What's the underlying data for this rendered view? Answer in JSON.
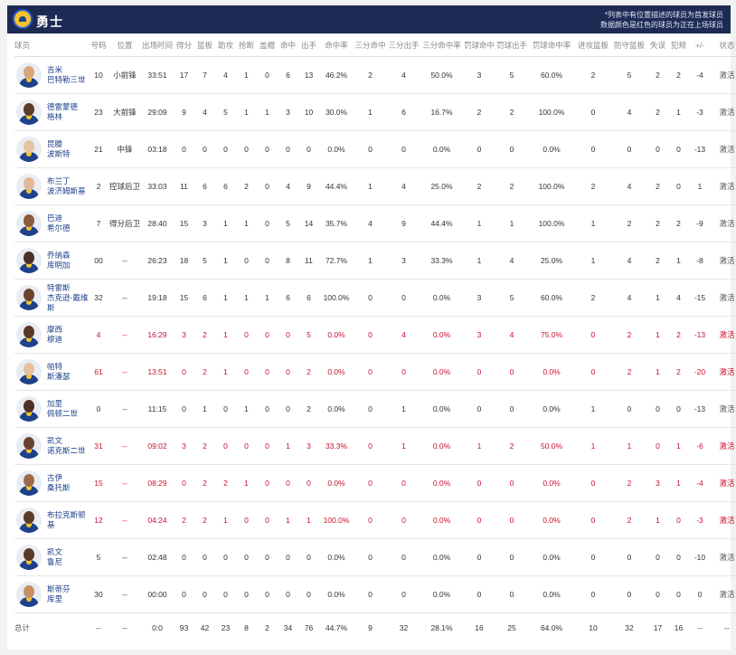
{
  "team": {
    "name": "勇士"
  },
  "note": {
    "line1": "*列表中有位置描述的球员为首发球员",
    "line2": "数据颜色是红色的球员为正在上场球员"
  },
  "headers": [
    "球员",
    "号码",
    "位置",
    "出场时间",
    "得分",
    "篮板",
    "助攻",
    "抢断",
    "盖帽",
    "命中",
    "出手",
    "命中率",
    "三分命中",
    "三分出手",
    "三分命中率",
    "罚球命中",
    "罚球出手",
    "罚球命中率",
    "进攻篮板",
    "防守篮板",
    "失误",
    "犯规",
    "+/-",
    "状态"
  ],
  "players": [
    {
      "name_l1": "吉米",
      "name_l2": "巴特勒三世",
      "on_court": false,
      "skin": "#d9a57a",
      "stats": [
        "10",
        "小前锋",
        "33:51",
        "17",
        "7",
        "4",
        "1",
        "0",
        "6",
        "13",
        "46.2%",
        "2",
        "4",
        "50.0%",
        "3",
        "5",
        "60.0%",
        "2",
        "5",
        "2",
        "2",
        "-4",
        "激活"
      ]
    },
    {
      "name_l1": "德雷蒙德",
      "name_l2": "格林",
      "on_court": false,
      "skin": "#5b3a29",
      "stats": [
        "23",
        "大前锋",
        "29:09",
        "9",
        "4",
        "5",
        "1",
        "1",
        "3",
        "10",
        "30.0%",
        "1",
        "6",
        "16.7%",
        "2",
        "2",
        "100.0%",
        "0",
        "4",
        "2",
        "1",
        "-3",
        "激活"
      ]
    },
    {
      "name_l1": "昆滕",
      "name_l2": "波斯特",
      "on_court": false,
      "skin": "#e8c3a0",
      "stats": [
        "21",
        "中锋",
        "03:18",
        "0",
        "0",
        "0",
        "0",
        "0",
        "0",
        "0",
        "0.0%",
        "0",
        "0",
        "0.0%",
        "0",
        "0",
        "0.0%",
        "0",
        "0",
        "0",
        "0",
        "-13",
        "激活"
      ]
    },
    {
      "name_l1": "布兰丁",
      "name_l2": "波济姆斯基",
      "on_court": false,
      "skin": "#e2b896",
      "stats": [
        "2",
        "控球后卫",
        "33:03",
        "11",
        "6",
        "6",
        "2",
        "0",
        "4",
        "9",
        "44.4%",
        "1",
        "4",
        "25.0%",
        "2",
        "2",
        "100.0%",
        "2",
        "4",
        "2",
        "0",
        "1",
        "激活"
      ]
    },
    {
      "name_l1": "巴迪",
      "name_l2": "希尔德",
      "on_court": false,
      "skin": "#8a5a3c",
      "stats": [
        "7",
        "得分后卫",
        "28:40",
        "15",
        "3",
        "1",
        "1",
        "0",
        "5",
        "14",
        "35.7%",
        "4",
        "9",
        "44.4%",
        "1",
        "1",
        "100.0%",
        "1",
        "2",
        "2",
        "2",
        "-9",
        "激活"
      ]
    },
    {
      "name_l1": "乔纳森",
      "name_l2": "库明加",
      "on_court": false,
      "skin": "#4a2e22",
      "stats": [
        "00",
        "--",
        "26:23",
        "18",
        "5",
        "1",
        "0",
        "0",
        "8",
        "11",
        "72.7%",
        "1",
        "3",
        "33.3%",
        "1",
        "4",
        "25.0%",
        "1",
        "4",
        "2",
        "1",
        "-8",
        "激活"
      ]
    },
    {
      "name_l1": "特雷斯",
      "name_l2": "杰克逊-戴维斯",
      "on_court": false,
      "skin": "#6b4430",
      "stats": [
        "32",
        "--",
        "19:18",
        "15",
        "6",
        "1",
        "1",
        "1",
        "6",
        "6",
        "100.0%",
        "0",
        "0",
        "0.0%",
        "3",
        "5",
        "60.0%",
        "2",
        "4",
        "1",
        "4",
        "-15",
        "激活"
      ]
    },
    {
      "name_l1": "摩西",
      "name_l2": "穆迪",
      "on_court": true,
      "skin": "#5a3826",
      "stats": [
        "4",
        "--",
        "16:29",
        "3",
        "2",
        "1",
        "0",
        "0",
        "0",
        "5",
        "0.0%",
        "0",
        "4",
        "0.0%",
        "3",
        "4",
        "75.0%",
        "0",
        "2",
        "1",
        "2",
        "-13",
        "激活"
      ]
    },
    {
      "name_l1": "帕特",
      "name_l2": "斯潘瑟",
      "on_court": true,
      "skin": "#e6c09c",
      "stats": [
        "61",
        "--",
        "13:51",
        "0",
        "2",
        "1",
        "0",
        "0",
        "0",
        "2",
        "0.0%",
        "0",
        "0",
        "0.0%",
        "0",
        "0",
        "0.0%",
        "0",
        "2",
        "1",
        "2",
        "-20",
        "激活"
      ]
    },
    {
      "name_l1": "加里",
      "name_l2": "佩顿二世",
      "on_court": false,
      "skin": "#4e3122",
      "stats": [
        "0",
        "--",
        "11:15",
        "0",
        "1",
        "0",
        "1",
        "0",
        "0",
        "2",
        "0.0%",
        "0",
        "1",
        "0.0%",
        "0",
        "0",
        "0.0%",
        "1",
        "0",
        "0",
        "0",
        "-13",
        "激活"
      ]
    },
    {
      "name_l1": "凯文",
      "name_l2": "诺克斯二世",
      "on_court": true,
      "skin": "#6a4330",
      "stats": [
        "31",
        "--",
        "09:02",
        "3",
        "2",
        "0",
        "0",
        "0",
        "1",
        "3",
        "33.3%",
        "0",
        "1",
        "0.0%",
        "1",
        "2",
        "50.0%",
        "1",
        "1",
        "0",
        "1",
        "-6",
        "激活"
      ]
    },
    {
      "name_l1": "古伊",
      "name_l2": "桑托斯",
      "on_court": true,
      "skin": "#9a6a48",
      "stats": [
        "15",
        "--",
        "08:29",
        "0",
        "2",
        "2",
        "1",
        "0",
        "0",
        "0",
        "0.0%",
        "0",
        "0",
        "0.0%",
        "0",
        "0",
        "0.0%",
        "0",
        "2",
        "3",
        "1",
        "-4",
        "激活"
      ]
    },
    {
      "name_l1": "布拉克斯顿",
      "name_l2": "基",
      "on_court": true,
      "skin": "#5c3a28",
      "stats": [
        "12",
        "--",
        "04:24",
        "2",
        "2",
        "1",
        "0",
        "0",
        "1",
        "1",
        "100.0%",
        "0",
        "0",
        "0.0%",
        "0",
        "0",
        "0.0%",
        "0",
        "2",
        "1",
        "0",
        "-3",
        "激活"
      ]
    },
    {
      "name_l1": "凯文",
      "name_l2": "鲁尼",
      "on_court": false,
      "skin": "#5a3a2a",
      "stats": [
        "5",
        "--",
        "02:48",
        "0",
        "0",
        "0",
        "0",
        "0",
        "0",
        "0",
        "0.0%",
        "0",
        "0",
        "0.0%",
        "0",
        "0",
        "0.0%",
        "0",
        "0",
        "0",
        "0",
        "-10",
        "激活"
      ]
    },
    {
      "name_l1": "斯蒂芬",
      "name_l2": "库里",
      "on_court": false,
      "skin": "#c98f63",
      "stats": [
        "30",
        "--",
        "00:00",
        "0",
        "0",
        "0",
        "0",
        "0",
        "0",
        "0",
        "0.0%",
        "0",
        "0",
        "0.0%",
        "0",
        "0",
        "0.0%",
        "0",
        "0",
        "0",
        "0",
        "0",
        "激活"
      ]
    }
  ],
  "totals": {
    "label": "总计",
    "stats": [
      "--",
      "--",
      "0:0",
      "93",
      "42",
      "23",
      "8",
      "2",
      "34",
      "76",
      "44.7%",
      "9",
      "32",
      "28.1%",
      "16",
      "25",
      "64.0%",
      "10",
      "32",
      "17",
      "16",
      "--",
      "--"
    ]
  },
  "colors": {
    "header_bg": "#1d2b54",
    "accent_red": "#c8102e",
    "name_blue": "#1d428a"
  }
}
